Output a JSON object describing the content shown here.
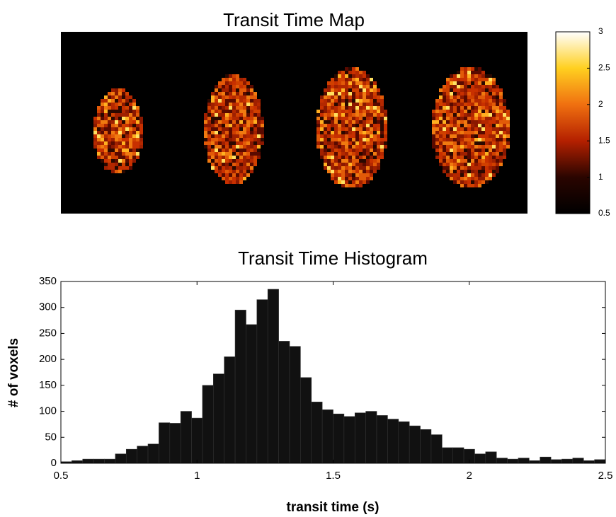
{
  "chart_data": [
    {
      "type": "image",
      "title": "Transit Time Map",
      "clim": [
        0.5,
        3
      ],
      "cticks": [
        0.5,
        1,
        1.5,
        2,
        2.5,
        3
      ]
    },
    {
      "type": "histogram",
      "title": "Transit Time Histogram",
      "xlabel": "transit time (s)",
      "ylabel": "# of voxels",
      "color": "#111111",
      "bins": [
        0.5,
        0.54,
        0.58,
        0.62,
        0.66,
        0.7,
        0.74,
        0.78,
        0.82,
        0.86,
        0.9,
        0.94,
        0.98,
        1.02,
        1.06,
        1.1,
        1.14,
        1.18,
        1.22,
        1.26,
        1.3,
        1.34,
        1.38,
        1.42,
        1.46,
        1.5,
        1.54,
        1.58,
        1.62,
        1.66,
        1.7,
        1.74,
        1.78,
        1.82,
        1.86,
        1.9,
        1.94,
        1.98,
        2.02,
        2.06,
        2.1,
        2.14,
        2.18,
        2.22,
        2.26,
        2.3,
        2.34,
        2.38,
        2.42,
        2.46,
        2.5
      ],
      "values": [
        3,
        5,
        8,
        8,
        8,
        18,
        27,
        33,
        37,
        78,
        77,
        100,
        87,
        150,
        172,
        205,
        295,
        267,
        315,
        335,
        235,
        225,
        165,
        118,
        103,
        95,
        90,
        97,
        100,
        92,
        85,
        80,
        72,
        65,
        55,
        30,
        30,
        27,
        18,
        22,
        10,
        8,
        10,
        5,
        12,
        7,
        8,
        10,
        5,
        7
      ],
      "xlim": [
        0.5,
        2.5
      ],
      "xticks": [
        0.5,
        1,
        1.5,
        2,
        2.5
      ],
      "ylim": [
        0,
        350
      ],
      "yticks": [
        0,
        50,
        100,
        150,
        200,
        250,
        300,
        350
      ]
    }
  ]
}
